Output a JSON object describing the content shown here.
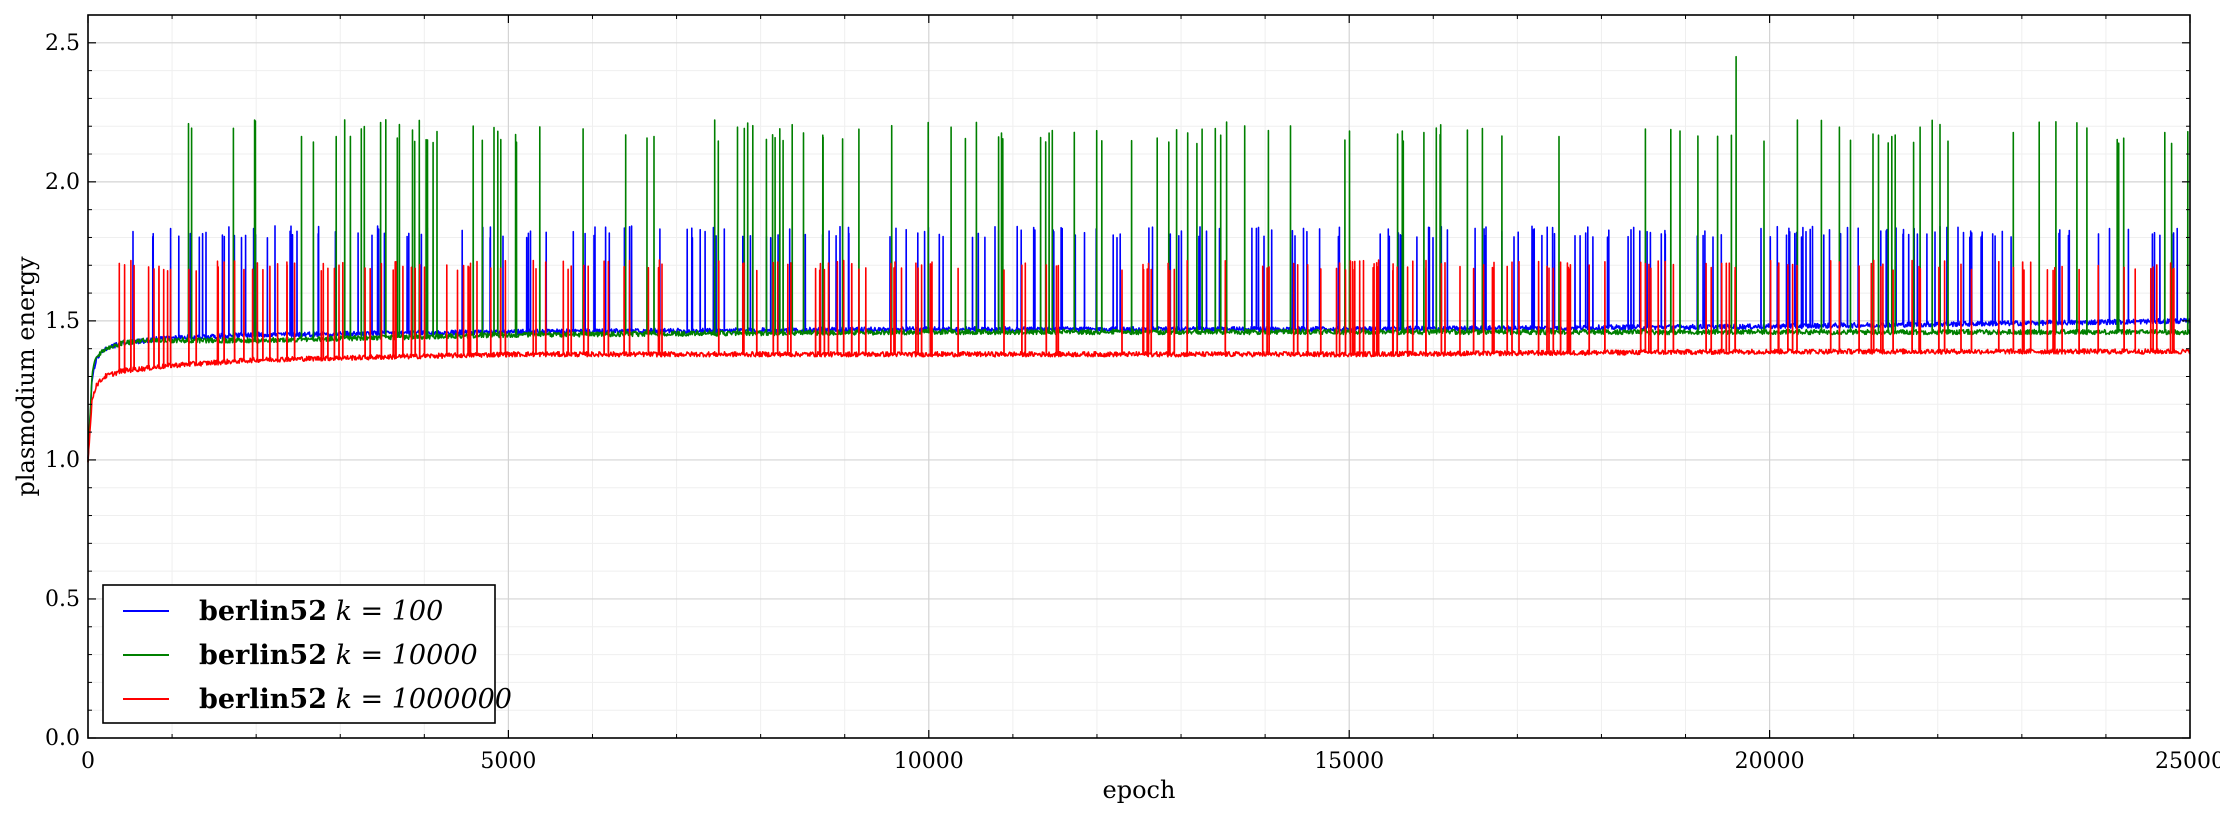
{
  "chart_data": {
    "type": "line",
    "title": "",
    "xlabel": "epoch",
    "ylabel": "plasmodium energy",
    "xlim": [
      0,
      25000
    ],
    "ylim": [
      0.0,
      2.6
    ],
    "xticks": [
      0,
      5000,
      10000,
      15000,
      20000,
      25000
    ],
    "xtick_labels": [
      "0",
      "5000",
      "10000",
      "15000",
      "20000",
      "25000"
    ],
    "yticks": [
      0.0,
      0.5,
      1.0,
      1.5,
      2.0,
      2.5
    ],
    "ytick_labels": [
      "0.0",
      "0.5",
      "1.0",
      "1.5",
      "2.0",
      "2.5"
    ],
    "grid": true,
    "legend_position": "lower-left",
    "series": [
      {
        "name": "berlin52 k = 100",
        "legend_prefix": "berlin52",
        "legend_math": "k = 100",
        "color": "#0000ff",
        "baseline_x": [
          0,
          50,
          100,
          200,
          400,
          700,
          1000,
          2000,
          5000,
          10000,
          15000,
          20000,
          25000
        ],
        "baseline_y": [
          1.0,
          1.3,
          1.36,
          1.4,
          1.42,
          1.43,
          1.44,
          1.45,
          1.46,
          1.47,
          1.47,
          1.48,
          1.5
        ],
        "spike_level": 1.82,
        "spike_count": 230,
        "spike_range": [
          300,
          25000
        ]
      },
      {
        "name": "berlin52 k = 10000",
        "legend_prefix": "berlin52",
        "legend_math": "k = 10000",
        "color": "#008000",
        "baseline_x": [
          0,
          50,
          100,
          200,
          400,
          700,
          1000,
          2000,
          5000,
          10000,
          15000,
          20000,
          25000
        ],
        "baseline_y": [
          1.0,
          1.32,
          1.37,
          1.4,
          1.42,
          1.43,
          1.43,
          1.43,
          1.45,
          1.46,
          1.46,
          1.46,
          1.46
        ],
        "spike_level": 2.18,
        "spike_count": 125,
        "spike_range": [
          1100,
          25000
        ],
        "max_spike": {
          "x": 19600,
          "y": 2.45
        }
      },
      {
        "name": "berlin52 k = 1000000",
        "legend_prefix": "berlin52",
        "legend_math": "k = 1000000",
        "color": "#ff0000",
        "baseline_x": [
          0,
          50,
          100,
          200,
          400,
          700,
          1000,
          2000,
          5000,
          10000,
          15000,
          20000,
          25000
        ],
        "baseline_y": [
          1.0,
          1.22,
          1.27,
          1.3,
          1.32,
          1.33,
          1.34,
          1.36,
          1.38,
          1.38,
          1.38,
          1.39,
          1.39
        ],
        "spike_level": 1.7,
        "spike_count": 220,
        "spike_range": [
          300,
          25000
        ]
      }
    ]
  }
}
